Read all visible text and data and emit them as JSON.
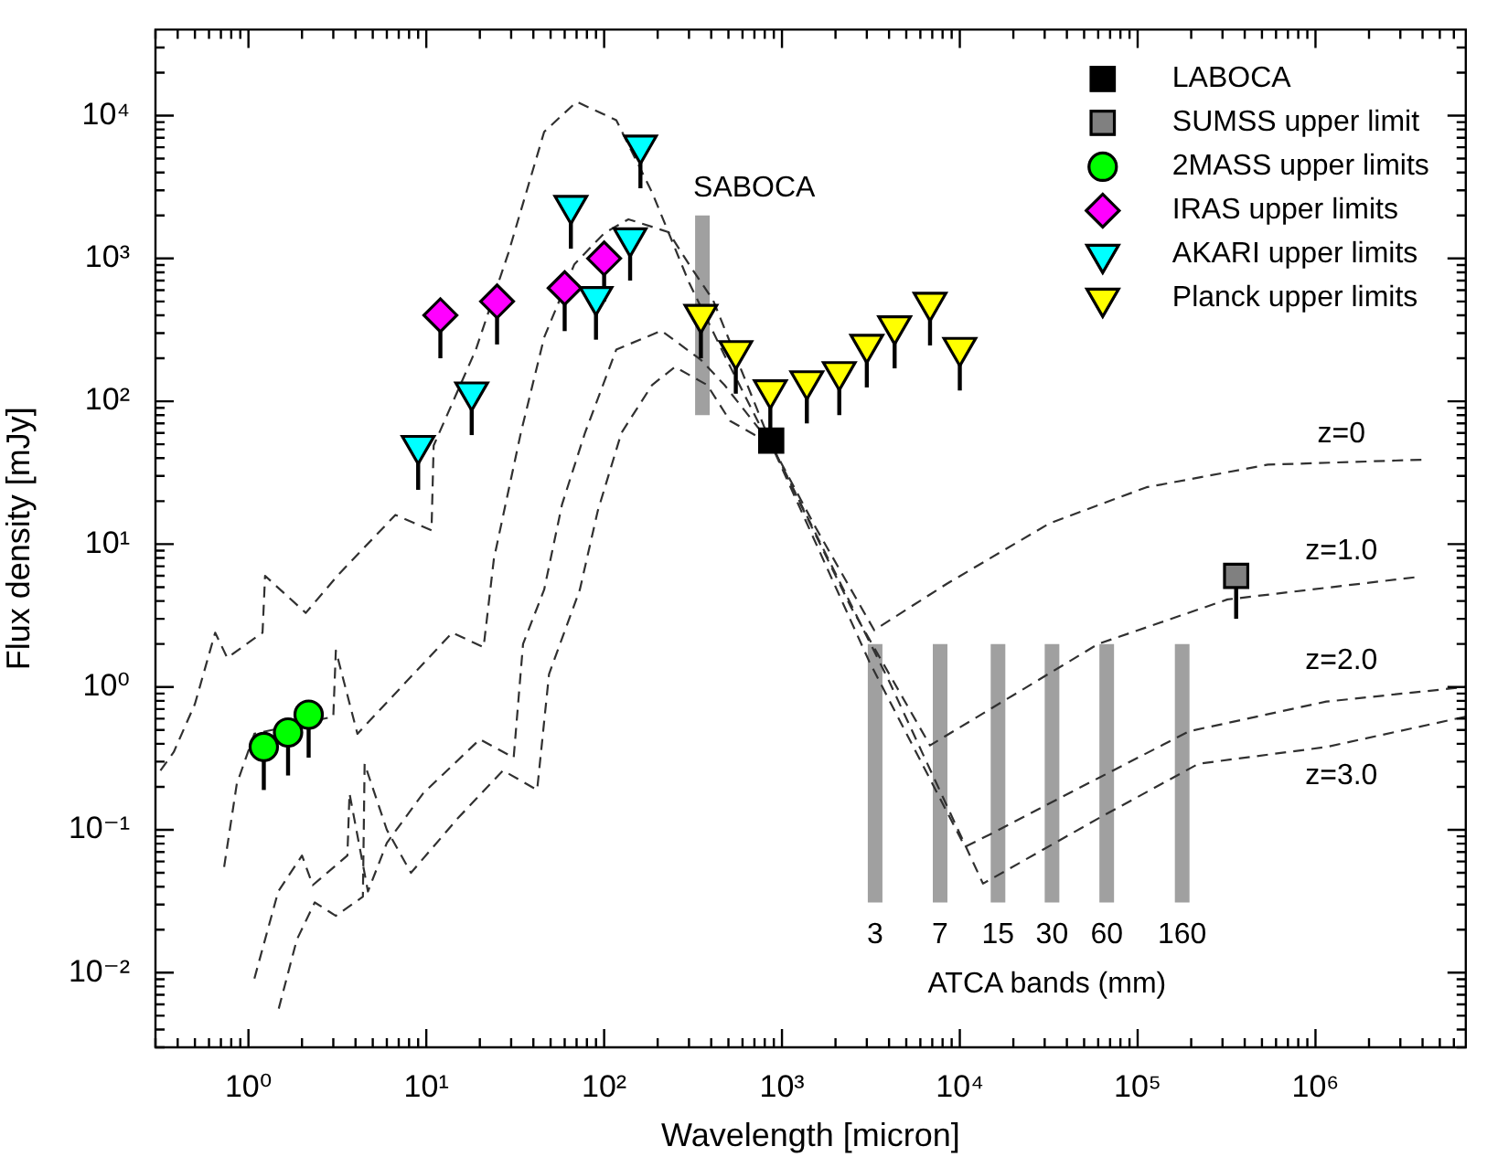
{
  "chart_data": {
    "type": "scatter",
    "xlabel": "Wavelength [micron]",
    "ylabel": "Flux density [mJy]",
    "log": "xy",
    "grid": false,
    "legend": "top right",
    "xlim": [
      0.3,
      7000000
    ],
    "ylim": [
      0.003,
      40000
    ],
    "xticks": [
      {
        "value": 0.3,
        "label": null
      },
      {
        "value": 0.4,
        "label": null
      },
      {
        "value": 0.5,
        "label": null
      },
      {
        "value": 0.6,
        "label": null
      },
      {
        "value": 0.7,
        "label": null
      },
      {
        "value": 0.8,
        "label": null
      },
      {
        "value": 0.9,
        "label": null
      },
      {
        "value": 1,
        "label": "10⁰"
      },
      {
        "value": 2,
        "label": null
      },
      {
        "value": 3,
        "label": null
      },
      {
        "value": 4,
        "label": null
      },
      {
        "value": 5,
        "label": null
      },
      {
        "value": 6,
        "label": null
      },
      {
        "value": 7,
        "label": null
      },
      {
        "value": 8,
        "label": null
      },
      {
        "value": 9,
        "label": null
      },
      {
        "value": 10,
        "label": "10¹"
      },
      {
        "value": 20,
        "label": null
      },
      {
        "value": 30,
        "label": null
      },
      {
        "value": 40,
        "label": null
      },
      {
        "value": 50,
        "label": null
      },
      {
        "value": 60,
        "label": null
      },
      {
        "value": 70,
        "label": null
      },
      {
        "value": 80,
        "label": null
      },
      {
        "value": 90,
        "label": null
      },
      {
        "value": 100,
        "label": "10²"
      },
      {
        "value": 200,
        "label": null
      },
      {
        "value": 300,
        "label": null
      },
      {
        "value": 400,
        "label": null
      },
      {
        "value": 500,
        "label": null
      },
      {
        "value": 600,
        "label": null
      },
      {
        "value": 700,
        "label": null
      },
      {
        "value": 800,
        "label": null
      },
      {
        "value": 900,
        "label": null
      },
      {
        "value": 1000,
        "label": "10³"
      },
      {
        "value": 2000,
        "label": null
      },
      {
        "value": 3000,
        "label": null
      },
      {
        "value": 4000,
        "label": null
      },
      {
        "value": 5000,
        "label": null
      },
      {
        "value": 6000,
        "label": null
      },
      {
        "value": 7000,
        "label": null
      },
      {
        "value": 8000,
        "label": null
      },
      {
        "value": 9000,
        "label": null
      },
      {
        "value": 10000,
        "label": "10⁴"
      },
      {
        "value": 20000,
        "label": null
      },
      {
        "value": 30000,
        "label": null
      },
      {
        "value": 40000,
        "label": null
      },
      {
        "value": 50000,
        "label": null
      },
      {
        "value": 60000,
        "label": null
      },
      {
        "value": 70000,
        "label": null
      },
      {
        "value": 80000,
        "label": null
      },
      {
        "value": 90000,
        "label": null
      },
      {
        "value": 100000,
        "label": "10⁵"
      },
      {
        "value": 200000,
        "label": null
      },
      {
        "value": 300000,
        "label": null
      },
      {
        "value": 400000,
        "label": null
      },
      {
        "value": 500000,
        "label": null
      },
      {
        "value": 600000,
        "label": null
      },
      {
        "value": 700000,
        "label": null
      },
      {
        "value": 800000,
        "label": null
      },
      {
        "value": 900000,
        "label": null
      },
      {
        "value": 1000000,
        "label": "10⁶"
      },
      {
        "value": 2000000,
        "label": null
      },
      {
        "value": 3000000,
        "label": null
      },
      {
        "value": 4000000,
        "label": null
      },
      {
        "value": 5000000,
        "label": null
      },
      {
        "value": 6000000,
        "label": null
      }
    ],
    "yticks": [
      {
        "value": 0.003,
        "label": null
      },
      {
        "value": 0.004,
        "label": null
      },
      {
        "value": 0.005,
        "label": null
      },
      {
        "value": 0.006,
        "label": null
      },
      {
        "value": 0.007,
        "label": null
      },
      {
        "value": 0.008,
        "label": null
      },
      {
        "value": 0.009,
        "label": null
      },
      {
        "value": 0.01,
        "label": "10⁻²"
      },
      {
        "value": 0.02,
        "label": null
      },
      {
        "value": 0.03,
        "label": null
      },
      {
        "value": 0.04,
        "label": null
      },
      {
        "value": 0.05,
        "label": null
      },
      {
        "value": 0.06,
        "label": null
      },
      {
        "value": 0.07,
        "label": null
      },
      {
        "value": 0.08,
        "label": null
      },
      {
        "value": 0.09,
        "label": null
      },
      {
        "value": 0.1,
        "label": "10⁻¹"
      },
      {
        "value": 0.2,
        "label": null
      },
      {
        "value": 0.3,
        "label": null
      },
      {
        "value": 0.4,
        "label": null
      },
      {
        "value": 0.5,
        "label": null
      },
      {
        "value": 0.6,
        "label": null
      },
      {
        "value": 0.7,
        "label": null
      },
      {
        "value": 0.8,
        "label": null
      },
      {
        "value": 0.9,
        "label": null
      },
      {
        "value": 1,
        "label": "10⁰"
      },
      {
        "value": 2,
        "label": null
      },
      {
        "value": 3,
        "label": null
      },
      {
        "value": 4,
        "label": null
      },
      {
        "value": 5,
        "label": null
      },
      {
        "value": 6,
        "label": null
      },
      {
        "value": 7,
        "label": null
      },
      {
        "value": 8,
        "label": null
      },
      {
        "value": 9,
        "label": null
      },
      {
        "value": 10,
        "label": "10¹"
      },
      {
        "value": 20,
        "label": null
      },
      {
        "value": 30,
        "label": null
      },
      {
        "value": 40,
        "label": null
      },
      {
        "value": 50,
        "label": null
      },
      {
        "value": 60,
        "label": null
      },
      {
        "value": 70,
        "label": null
      },
      {
        "value": 80,
        "label": null
      },
      {
        "value": 90,
        "label": null
      },
      {
        "value": 100,
        "label": "10²"
      },
      {
        "value": 200,
        "label": null
      },
      {
        "value": 300,
        "label": null
      },
      {
        "value": 400,
        "label": null
      },
      {
        "value": 500,
        "label": null
      },
      {
        "value": 600,
        "label": null
      },
      {
        "value": 700,
        "label": null
      },
      {
        "value": 800,
        "label": null
      },
      {
        "value": 900,
        "label": null
      },
      {
        "value": 1000,
        "label": "10³"
      },
      {
        "value": 2000,
        "label": null
      },
      {
        "value": 3000,
        "label": null
      },
      {
        "value": 4000,
        "label": null
      },
      {
        "value": 5000,
        "label": null
      },
      {
        "value": 6000,
        "label": null
      },
      {
        "value": 7000,
        "label": null
      },
      {
        "value": 8000,
        "label": null
      },
      {
        "value": 9000,
        "label": null
      },
      {
        "value": 10000,
        "label": "10⁴"
      },
      {
        "value": 20000,
        "label": null
      },
      {
        "value": 30000,
        "label": null
      }
    ],
    "series": [
      {
        "name": "SABOCA",
        "type": "line",
        "color": "#a0a0a0",
        "x": [
          357,
          357
        ],
        "values": [
          80,
          2000
        ]
      },
      {
        "name": "3",
        "type": "line",
        "color": "#a0a0a0",
        "x": [
          3340,
          3340
        ],
        "values": [
          0.031,
          2.0
        ]
      },
      {
        "name": "7",
        "type": "line",
        "color": "#a0a0a0",
        "x": [
          7750,
          7750
        ],
        "values": [
          0.031,
          2.0
        ]
      },
      {
        "name": "15",
        "type": "line",
        "color": "#a0a0a0",
        "x": [
          16400,
          16400
        ],
        "values": [
          0.031,
          2.0
        ]
      },
      {
        "name": "30",
        "type": "line",
        "color": "#a0a0a0",
        "x": [
          33000,
          33000
        ],
        "values": [
          0.031,
          2.0
        ]
      },
      {
        "name": "60",
        "type": "line",
        "color": "#a0a0a0",
        "x": [
          67000,
          67000
        ],
        "values": [
          0.031,
          2.0
        ]
      },
      {
        "name": "160",
        "type": "line",
        "color": "#a0a0a0",
        "x": [
          178000,
          178000
        ],
        "values": [
          0.031,
          2.0
        ]
      },
      {
        "name": "z=0",
        "type": "line",
        "color": "#303030",
        "line_style": "dashed",
        "x": [
          0.32,
          0.38,
          0.5,
          0.65,
          0.76,
          1.2,
          1.24,
          2.1,
          3.2,
          6.7,
          10.7,
          11,
          19,
          29,
          46,
          70,
          117,
          186,
          300,
          475,
          760,
          870,
          1550,
          3300,
          8500,
          32000,
          112000,
          540000,
          4000000
        ],
        "values": [
          0.26,
          0.35,
          0.76,
          2.4,
          1.6,
          2.4,
          6.0,
          3.3,
          6.1,
          16,
          12.5,
          49,
          230,
          1100,
          7700,
          12500,
          9300,
          2900,
          680,
          210,
          66,
          50,
          13,
          2.5,
          5.3,
          14,
          25,
          36,
          39
        ]
      },
      {
        "name": "z=1.0",
        "type": "line",
        "color": "#303030",
        "line_style": "dashed",
        "x": [
          0.73,
          0.86,
          1.08,
          3.0,
          3.1,
          4.1,
          14,
          21,
          24,
          34,
          46,
          68,
          100,
          137,
          230,
          300,
          410,
          560,
          870,
          2450,
          6800,
          60000,
          320000,
          3800000
        ],
        "values": [
          0.055,
          0.21,
          0.47,
          0.62,
          1.8,
          0.47,
          2.4,
          1.9,
          7.9,
          60,
          280,
          910,
          1500,
          1880,
          1530,
          910,
          510,
          195,
          50,
          3.6,
          0.39,
          2.0,
          4.1,
          5.9
        ]
      },
      {
        "name": "z=2.0",
        "type": "line",
        "color": "#303030",
        "line_style": "dashed",
        "x": [
          1.08,
          1.47,
          2.0,
          2.3,
          3.6,
          3.7,
          4.7,
          6.0,
          9.6,
          20,
          31,
          35,
          46,
          58,
          78,
          117,
          210,
          350,
          475,
          870,
          3100,
          10700,
          14800,
          60000,
          195000,
          1150000,
          7000000
        ],
        "values": [
          0.0091,
          0.037,
          0.066,
          0.041,
          0.066,
          0.18,
          0.037,
          0.081,
          0.18,
          0.43,
          0.32,
          2.0,
          4.8,
          19,
          60,
          230,
          312,
          195,
          130,
          50,
          1.5,
          0.076,
          0.093,
          0.23,
          0.49,
          0.79,
          1.0
        ]
      },
      {
        "name": "z=3.0",
        "type": "line",
        "color": "#303030",
        "line_style": "dashed",
        "x": [
          1.48,
          1.87,
          2.36,
          3.1,
          4.4,
          4.5,
          6.0,
          8.2,
          15,
          27,
          42,
          49,
          73,
          92,
          125,
          186,
          250,
          380,
          510,
          870,
          4000,
          13500,
          60000,
          220000,
          1150000,
          7000000
        ],
        "values": [
          0.0056,
          0.017,
          0.031,
          0.025,
          0.034,
          0.29,
          0.1,
          0.05,
          0.12,
          0.26,
          0.19,
          1.23,
          4.8,
          17,
          60,
          130,
          174,
          130,
          73,
          50,
          1.1,
          0.042,
          0.12,
          0.29,
          0.38,
          0.62
        ]
      },
      {
        "name": "LABOCA",
        "type": "scatter",
        "marker": "square",
        "color": "#000000",
        "x": [
          870
        ],
        "values": [
          53
        ]
      },
      {
        "name": "SUMSS upper limit",
        "type": "scatter",
        "marker": "square",
        "color": "#808080",
        "x": [
          358000
        ],
        "values": [
          6.0
        ],
        "errors": [
          [
            3.0,
            6.0
          ]
        ]
      },
      {
        "name": "2MASS upper limits",
        "type": "scatter",
        "marker": "circle",
        "color": "#00ff00",
        "x": [
          1.22,
          1.67,
          2.18
        ],
        "values": [
          0.38,
          0.48,
          0.64
        ],
        "errors": [
          [
            0.19,
            0.38
          ],
          [
            0.24,
            0.48
          ],
          [
            0.32,
            0.64
          ]
        ]
      },
      {
        "name": "IRAS upper limits",
        "type": "scatter",
        "marker": "diamond",
        "color": "#ff00ff",
        "x": [
          12,
          25,
          60,
          100
        ],
        "values": [
          400,
          500,
          620,
          1000
        ],
        "errors": [
          [
            200,
            400
          ],
          [
            250,
            500
          ],
          [
            310,
            620
          ],
          [
            500,
            1000
          ]
        ]
      },
      {
        "name": "AKARI upper limits",
        "type": "scatter",
        "marker": "triangle",
        "color": "#00ffff",
        "x": [
          9,
          18,
          65,
          90,
          140,
          160
        ],
        "values": [
          49,
          116,
          2350,
          540,
          1390,
          6200
        ],
        "errors": [
          [
            24,
            49
          ],
          [
            58,
            116
          ],
          [
            1170,
            2350
          ],
          [
            270,
            540
          ],
          [
            700,
            1390
          ],
          [
            3100,
            6200
          ]
        ]
      },
      {
        "name": "Planck upper limits",
        "type": "scatter",
        "marker": "triangle",
        "color": "#ffff00",
        "x": [
          350,
          550,
          860,
          1380,
          2100,
          3000,
          4300,
          6800,
          10000
        ],
        "values": [
          405,
          226,
          120,
          139,
          161,
          250,
          337,
          492,
          238
        ],
        "errors": [
          [
            200,
            405
          ],
          [
            113,
            226
          ],
          [
            60,
            120
          ],
          [
            70,
            139
          ],
          [
            80,
            161
          ],
          [
            125,
            250
          ],
          [
            170,
            337
          ],
          [
            246,
            492
          ],
          [
            119,
            238
          ]
        ]
      }
    ],
    "annotations": [
      "ATCA bands (mm)"
    ]
  }
}
